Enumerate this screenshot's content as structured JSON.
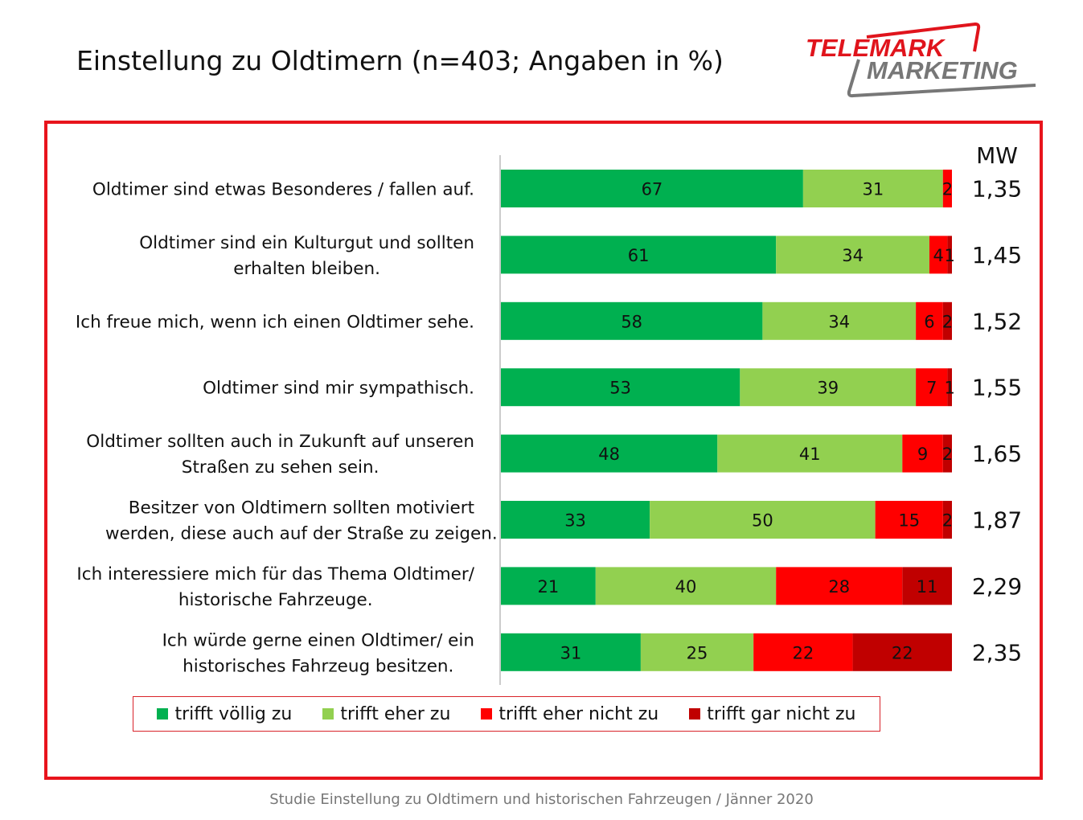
{
  "title": "Einstellung zu Oldtimern (n=403; Angaben in %)",
  "logo": {
    "line1": "TELEMARK",
    "line2": "MARKETING"
  },
  "footer": "Studie Einstellung zu Oldtimern und historischen Fahrzeugen / Jänner 2020",
  "colors": {
    "frame": "#e8141c",
    "logo_red": "#e0141c",
    "logo_gray": "#777777"
  },
  "chart_data": {
    "type": "bar",
    "orientation": "horizontal",
    "stacked": true,
    "mw_header": "MW",
    "legend_position": "bottom",
    "categories": [
      [
        "Oldtimer sind etwas Besonderes / fallen auf."
      ],
      [
        "Oldtimer sind ein Kulturgut und sollten",
        "erhalten bleiben."
      ],
      [
        "Ich freue mich, wenn ich einen Oldtimer sehe."
      ],
      [
        "Oldtimer sind mir sympathisch."
      ],
      [
        "Oldtimer sollten auch in Zukunft auf unseren",
        "Straßen zu sehen sein."
      ],
      [
        "Besitzer von Oldtimern sollten motiviert",
        "werden, diese auch auf der Straße zu zeigen."
      ],
      [
        "Ich interessiere mich für das Thema Oldtimer/",
        "historische Fahrzeuge."
      ],
      [
        "Ich würde gerne einen Oldtimer/ ein",
        "historisches Fahrzeug besitzen."
      ]
    ],
    "series": [
      {
        "name": "trifft völlig zu",
        "color": "#00b050",
        "values": [
          67,
          61,
          58,
          53,
          48,
          33,
          21,
          31
        ]
      },
      {
        "name": "trifft eher zu",
        "color": "#92d050",
        "values": [
          31,
          34,
          34,
          39,
          41,
          50,
          40,
          25
        ]
      },
      {
        "name": "trifft eher nicht zu",
        "color": "#ff0000",
        "values": [
          2,
          4,
          6,
          7,
          9,
          15,
          28,
          22
        ]
      },
      {
        "name": "trifft gar nicht zu",
        "color": "#c00000",
        "values": [
          0,
          1,
          2,
          1,
          2,
          2,
          11,
          22
        ]
      }
    ],
    "mw": [
      "1,35",
      "1,45",
      "1,52",
      "1,55",
      "1,65",
      "1,87",
      "2,29",
      "2,35"
    ],
    "xlim": [
      0,
      100
    ]
  }
}
